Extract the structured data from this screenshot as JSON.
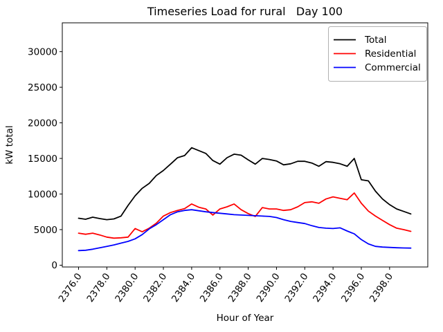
{
  "chart_data": {
    "type": "line",
    "title": "Timeseries Load for rural   Day 100",
    "xlabel": "Hour of Year",
    "ylabel": "kW total",
    "grid": false,
    "legend_position": "upper right",
    "xlim": [
      2374.85,
      2400.7
    ],
    "ylim": [
      -250,
      34050
    ],
    "x_ticks": [
      2376.0,
      2378.0,
      2380.0,
      2382.0,
      2384.0,
      2386.0,
      2388.0,
      2390.0,
      2392.0,
      2394.0,
      2396.0,
      2398.0
    ],
    "x_tick_labels": [
      "2376.0",
      "2378.0",
      "2380.0",
      "2382.0",
      "2384.0",
      "2386.0",
      "2388.0",
      "2390.0",
      "2392.0",
      "2394.0",
      "2396.0",
      "2398.0"
    ],
    "y_ticks": [
      0,
      5000,
      10000,
      15000,
      20000,
      25000,
      30000
    ],
    "y_tick_labels": [
      "0",
      "5000",
      "10000",
      "15000",
      "20000",
      "25000",
      "30000"
    ],
    "x": [
      2376.0,
      2376.5,
      2377.0,
      2377.5,
      2378.0,
      2378.5,
      2379.0,
      2379.5,
      2380.0,
      2380.5,
      2381.0,
      2381.5,
      2382.0,
      2382.5,
      2383.0,
      2383.5,
      2384.0,
      2384.5,
      2385.0,
      2385.5,
      2386.0,
      2386.5,
      2387.0,
      2387.5,
      2388.0,
      2388.5,
      2389.0,
      2389.5,
      2390.0,
      2390.5,
      2391.0,
      2391.5,
      2392.0,
      2392.5,
      2393.0,
      2393.5,
      2394.0,
      2394.5,
      2395.0,
      2395.5,
      2396.0,
      2396.5,
      2397.0,
      2397.5,
      2398.0,
      2398.5,
      2399.0,
      2399.5
    ],
    "series": [
      {
        "name": "Total",
        "color": "#000000",
        "values": [
          6600,
          6450,
          6750,
          6550,
          6400,
          6500,
          6900,
          8400,
          9750,
          10800,
          11500,
          12600,
          13300,
          14200,
          15100,
          15400,
          16500,
          16100,
          15700,
          14700,
          14200,
          15100,
          15600,
          15450,
          14800,
          14200,
          15000,
          14850,
          14650,
          14100,
          14250,
          14600,
          14600,
          14350,
          13900,
          14550,
          14450,
          14250,
          13900,
          15000,
          12000,
          11850,
          10400,
          9300,
          8500,
          7900,
          7550,
          7200
        ]
      },
      {
        "name": "Residential",
        "color": "#ff0000",
        "values": [
          4500,
          4350,
          4500,
          4250,
          3950,
          3800,
          3850,
          3950,
          5150,
          4700,
          5200,
          5900,
          6900,
          7400,
          7700,
          7950,
          8600,
          8150,
          7900,
          7050,
          7900,
          8200,
          8600,
          7800,
          7250,
          6850,
          8100,
          7900,
          7900,
          7700,
          7800,
          8200,
          8800,
          8900,
          8700,
          9300,
          9600,
          9400,
          9200,
          10150,
          8700,
          7600,
          6900,
          6300,
          5700,
          5200,
          5000,
          4750
        ]
      },
      {
        "name": "Commercial",
        "color": "#0000ff",
        "values": [
          2050,
          2100,
          2250,
          2450,
          2650,
          2850,
          3100,
          3350,
          3700,
          4300,
          5100,
          5700,
          6400,
          7100,
          7500,
          7700,
          7800,
          7650,
          7500,
          7400,
          7300,
          7200,
          7100,
          7050,
          7000,
          6950,
          6900,
          6850,
          6700,
          6400,
          6150,
          6000,
          5850,
          5550,
          5300,
          5200,
          5150,
          5250,
          4800,
          4400,
          3600,
          3000,
          2650,
          2550,
          2500,
          2450,
          2420,
          2400
        ]
      }
    ]
  }
}
